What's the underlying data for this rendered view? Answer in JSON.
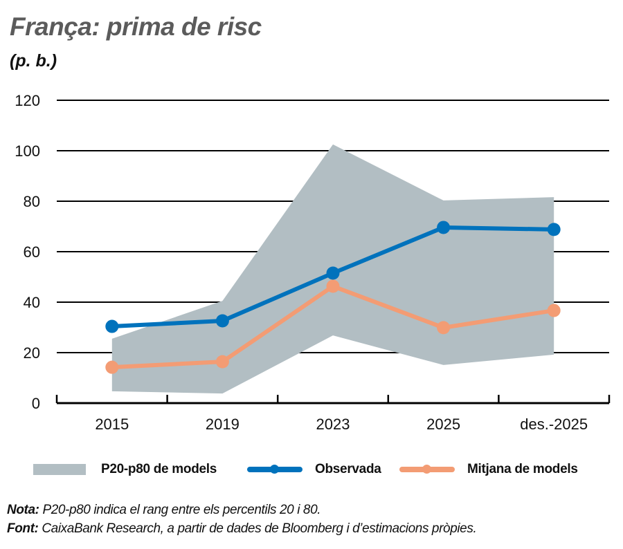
{
  "header": {
    "title": "França: prima de risc",
    "subtitle": "(p. b.)"
  },
  "colors": {
    "band": "#B2BEC3",
    "observada": "#0072BC",
    "mitjana": "#F39C74",
    "title": "#5B5B5B",
    "grid": "#000000"
  },
  "legend": {
    "band_label": "P20-p80 de models",
    "observada_label": "Observada",
    "mitjana_label": "Mitjana de models"
  },
  "notes": {
    "nota_label": "Nota:",
    "nota_text": " P20-p80 indica el rang entre els percentils 20 i 80.",
    "font_label": "Font:",
    "font_text": " CaixaBank Research, a partir de dades de Bloomberg i d’estimacions pròpies."
  },
  "chart_data": {
    "type": "line",
    "title": "França: prima de risc",
    "subtitle": "(p. b.)",
    "xlabel": "",
    "ylabel": "p. b.",
    "categories": [
      "2015",
      "2019",
      "2023",
      "2025",
      "des.-2025"
    ],
    "yticks": [
      0,
      20,
      40,
      60,
      80,
      100,
      120
    ],
    "ylim": [
      0,
      120
    ],
    "grid": true,
    "legend_position": "bottom",
    "series": [
      {
        "name": "Observada",
        "type": "line",
        "values": [
          30.4,
          32.6,
          51.5,
          69.6,
          68.8
        ]
      },
      {
        "name": "Mitjana de models",
        "type": "line",
        "values": [
          14.2,
          16.4,
          46.3,
          29.9,
          36.7
        ]
      },
      {
        "name": "P20-p80 de models",
        "type": "area-range",
        "lower": [
          4.7,
          3.8,
          26.8,
          15.1,
          19.2
        ],
        "upper": [
          25.5,
          40.5,
          102.5,
          80.3,
          81.6
        ]
      }
    ]
  }
}
